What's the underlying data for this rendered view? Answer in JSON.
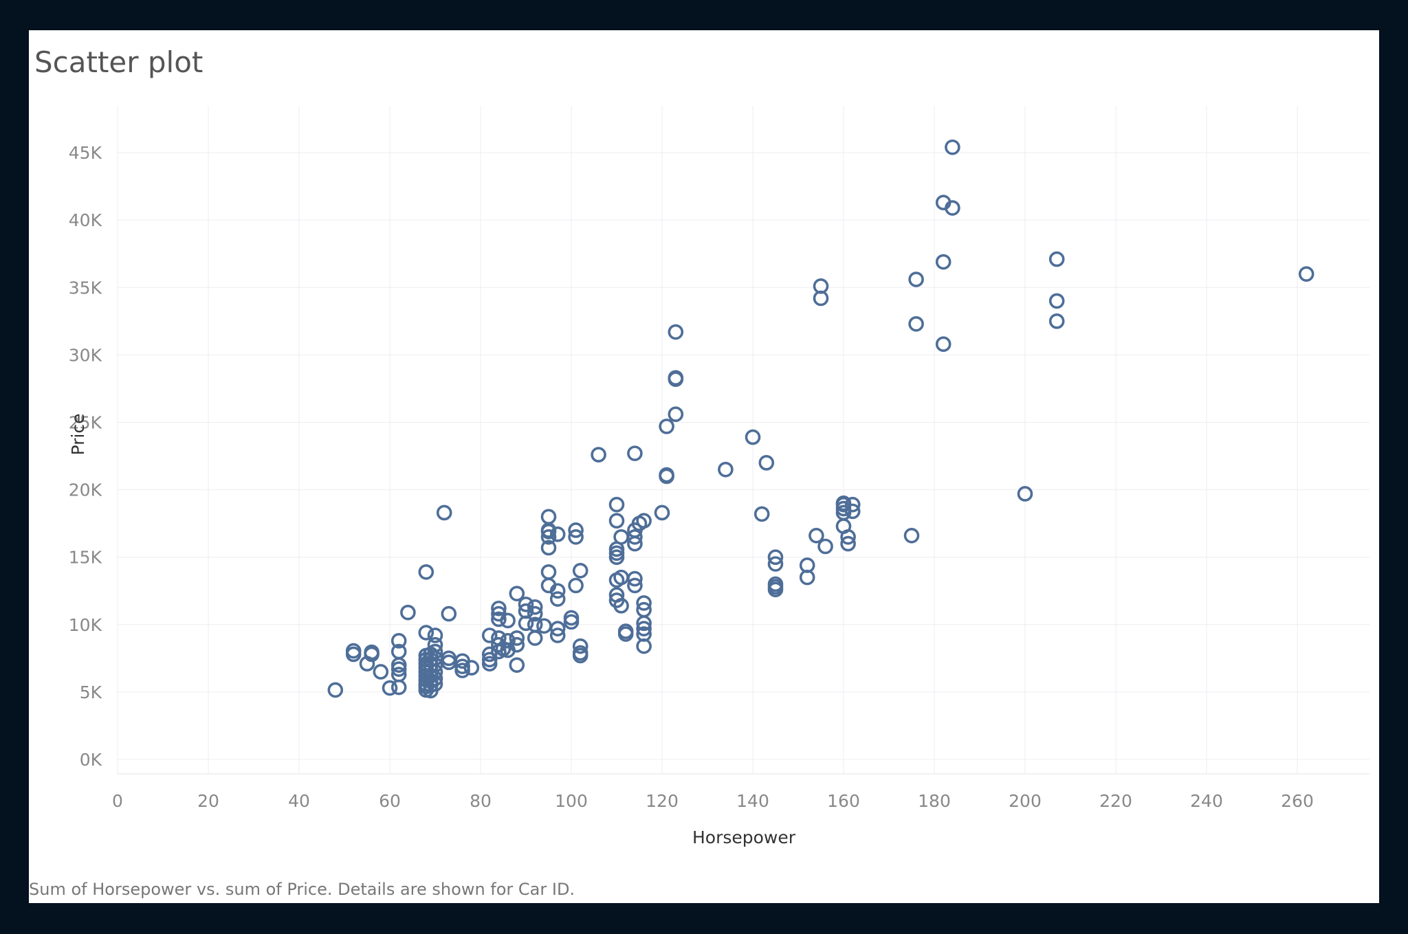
{
  "viz": {
    "title": "Scatter plot",
    "caption": "Sum of Horsepower vs. sum of Price.  Details are shown for Car ID."
  },
  "chart_data": {
    "type": "scatter",
    "title": "Scatter plot",
    "xlabel": "Horsepower",
    "ylabel": "Price",
    "xlim": [
      0,
      270
    ],
    "ylim": [
      -1000,
      47000
    ],
    "x_ticks": [
      0,
      20,
      40,
      60,
      80,
      100,
      120,
      140,
      160,
      180,
      200,
      220,
      240,
      260
    ],
    "y_ticks": [
      0,
      5000,
      10000,
      15000,
      20000,
      25000,
      30000,
      35000,
      40000,
      45000
    ],
    "y_tick_labels": [
      "0K",
      "5K",
      "10K",
      "15K",
      "20K",
      "25K",
      "30K",
      "35K",
      "40K",
      "45K"
    ],
    "grid": true,
    "marker": "hollow-circle",
    "point_color": "#4e6e98",
    "caption": "Sum of Horsepower vs. sum of Price.  Details are shown for Car ID.",
    "points": [
      [
        48,
        5151
      ],
      [
        52,
        7799
      ],
      [
        52,
        8050
      ],
      [
        55,
        7100
      ],
      [
        56,
        7800
      ],
      [
        56,
        7950
      ],
      [
        58,
        6500
      ],
      [
        60,
        5300
      ],
      [
        62,
        5350
      ],
      [
        62,
        6300
      ],
      [
        62,
        6700
      ],
      [
        62,
        7000
      ],
      [
        62,
        8000
      ],
      [
        62,
        8800
      ],
      [
        64,
        10900
      ],
      [
        68,
        5150
      ],
      [
        68,
        5400
      ],
      [
        68,
        5600
      ],
      [
        68,
        5900
      ],
      [
        68,
        6200
      ],
      [
        68,
        6500
      ],
      [
        68,
        6800
      ],
      [
        68,
        7100
      ],
      [
        68,
        7400
      ],
      [
        68,
        7700
      ],
      [
        68,
        9400
      ],
      [
        68,
        13900
      ],
      [
        69,
        5100
      ],
      [
        69,
        5500
      ],
      [
        69,
        5800
      ],
      [
        69,
        6200
      ],
      [
        69,
        6600
      ],
      [
        69,
        7000
      ],
      [
        69,
        7400
      ],
      [
        69,
        7800
      ],
      [
        70,
        5600
      ],
      [
        70,
        6000
      ],
      [
        70,
        6500
      ],
      [
        70,
        7000
      ],
      [
        70,
        7500
      ],
      [
        70,
        8000
      ],
      [
        70,
        8500
      ],
      [
        70,
        9200
      ],
      [
        72,
        18300
      ],
      [
        73,
        7200
      ],
      [
        73,
        7500
      ],
      [
        73,
        10800
      ],
      [
        76,
        6600
      ],
      [
        76,
        6900
      ],
      [
        76,
        7300
      ],
      [
        78,
        6800
      ],
      [
        82,
        7100
      ],
      [
        82,
        7400
      ],
      [
        82,
        7800
      ],
      [
        82,
        9200
      ],
      [
        84,
        8000
      ],
      [
        84,
        8500
      ],
      [
        84,
        9000
      ],
      [
        84,
        10400
      ],
      [
        84,
        10800
      ],
      [
        84,
        11200
      ],
      [
        85,
        8200
      ],
      [
        86,
        8100
      ],
      [
        86,
        8800
      ],
      [
        86,
        10300
      ],
      [
        88,
        7000
      ],
      [
        88,
        8500
      ],
      [
        88,
        9000
      ],
      [
        88,
        12300
      ],
      [
        90,
        10100
      ],
      [
        90,
        11000
      ],
      [
        90,
        11500
      ],
      [
        92,
        9000
      ],
      [
        92,
        10000
      ],
      [
        92,
        10800
      ],
      [
        92,
        11300
      ],
      [
        94,
        9900
      ],
      [
        95,
        12900
      ],
      [
        95,
        13900
      ],
      [
        95,
        15700
      ],
      [
        95,
        16500
      ],
      [
        95,
        16900
      ],
      [
        95,
        17000
      ],
      [
        95,
        18000
      ],
      [
        97,
        9200
      ],
      [
        97,
        9700
      ],
      [
        97,
        11900
      ],
      [
        97,
        12500
      ],
      [
        97,
        16700
      ],
      [
        100,
        10200
      ],
      [
        100,
        10500
      ],
      [
        101,
        12900
      ],
      [
        101,
        16500
      ],
      [
        101,
        17000
      ],
      [
        102,
        7700
      ],
      [
        102,
        7900
      ],
      [
        102,
        8400
      ],
      [
        102,
        14000
      ],
      [
        106,
        22600
      ],
      [
        110,
        11800
      ],
      [
        110,
        12200
      ],
      [
        110,
        13300
      ],
      [
        110,
        15000
      ],
      [
        110,
        15300
      ],
      [
        110,
        15600
      ],
      [
        110,
        17700
      ],
      [
        110,
        18900
      ],
      [
        111,
        11400
      ],
      [
        111,
        13500
      ],
      [
        111,
        16500
      ],
      [
        112,
        9300
      ],
      [
        112,
        9500
      ],
      [
        114,
        12900
      ],
      [
        114,
        13400
      ],
      [
        114,
        16000
      ],
      [
        114,
        16500
      ],
      [
        114,
        17000
      ],
      [
        114,
        22700
      ],
      [
        115,
        17500
      ],
      [
        116,
        8400
      ],
      [
        116,
        9300
      ],
      [
        116,
        9700
      ],
      [
        116,
        10100
      ],
      [
        116,
        11100
      ],
      [
        116,
        11600
      ],
      [
        116,
        17700
      ],
      [
        120,
        18300
      ],
      [
        121,
        21100
      ],
      [
        121,
        21000
      ],
      [
        121,
        24700
      ],
      [
        123,
        25600
      ],
      [
        123,
        28200
      ],
      [
        123,
        28300
      ],
      [
        123,
        31700
      ],
      [
        134,
        21500
      ],
      [
        140,
        23900
      ],
      [
        142,
        18200
      ],
      [
        143,
        22000
      ],
      [
        145,
        12600
      ],
      [
        145,
        12800
      ],
      [
        145,
        13000
      ],
      [
        145,
        14500
      ],
      [
        145,
        15000
      ],
      [
        152,
        13500
      ],
      [
        152,
        14400
      ],
      [
        154,
        16600
      ],
      [
        155,
        34200
      ],
      [
        155,
        35100
      ],
      [
        156,
        15800
      ],
      [
        160,
        17300
      ],
      [
        160,
        18300
      ],
      [
        160,
        18600
      ],
      [
        160,
        18900
      ],
      [
        160,
        19000
      ],
      [
        161,
        16000
      ],
      [
        161,
        16500
      ],
      [
        162,
        18400
      ],
      [
        162,
        18900
      ],
      [
        175,
        16600
      ],
      [
        176,
        32300
      ],
      [
        176,
        35600
      ],
      [
        182,
        30800
      ],
      [
        182,
        36900
      ],
      [
        182,
        41300
      ],
      [
        184,
        40900
      ],
      [
        184,
        45400
      ],
      [
        200,
        19700
      ],
      [
        207,
        32500
      ],
      [
        207,
        34000
      ],
      [
        207,
        37100
      ],
      [
        262,
        36000
      ]
    ]
  }
}
